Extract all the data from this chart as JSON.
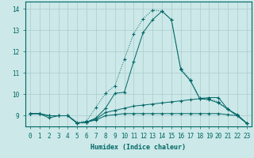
{
  "xlabel": "Humidex (Indice chaleur)",
  "background_color": "#cce8e8",
  "grid_color": "#aacccc",
  "line_color": "#006666",
  "xlim": [
    -0.5,
    23.5
  ],
  "ylim": [
    8.5,
    14.35
  ],
  "yticks": [
    9,
    10,
    11,
    12,
    13,
    14
  ],
  "xticks": [
    0,
    1,
    2,
    3,
    4,
    5,
    6,
    7,
    8,
    9,
    10,
    11,
    12,
    13,
    14,
    15,
    16,
    17,
    18,
    19,
    20,
    21,
    22,
    23
  ],
  "series": [
    {
      "x": [
        0,
        1,
        2,
        3,
        4,
        5,
        6,
        7,
        8,
        9,
        10,
        11,
        12,
        13,
        14,
        15,
        16,
        17,
        18,
        19,
        20,
        21,
        22,
        23
      ],
      "y": [
        9.1,
        9.1,
        9.0,
        9.0,
        9.0,
        8.7,
        8.75,
        9.4,
        10.05,
        10.4,
        11.65,
        12.85,
        13.55,
        13.95,
        13.9,
        13.5,
        11.2,
        10.7,
        9.85,
        9.8,
        9.65,
        9.3,
        9.0,
        8.65
      ],
      "linestyle": "dotted"
    },
    {
      "x": [
        0,
        1,
        2,
        3,
        4,
        5,
        6,
        7,
        8,
        9,
        10,
        11,
        12,
        13,
        14,
        15,
        16,
        17,
        18,
        19,
        20,
        21,
        22,
        23
      ],
      "y": [
        9.1,
        9.1,
        8.9,
        9.0,
        9.0,
        8.65,
        8.7,
        8.9,
        9.35,
        10.05,
        10.1,
        11.55,
        12.9,
        13.5,
        13.9,
        13.5,
        11.15,
        10.65,
        9.8,
        9.75,
        9.6,
        9.3,
        9.0,
        8.65
      ],
      "linestyle": "solid"
    },
    {
      "x": [
        0,
        1,
        2,
        3,
        4,
        5,
        6,
        7,
        8,
        9,
        10,
        11,
        12,
        13,
        14,
        15,
        16,
        17,
        18,
        19,
        20,
        21,
        22,
        23
      ],
      "y": [
        9.1,
        9.1,
        9.0,
        9.0,
        9.0,
        8.65,
        8.7,
        8.85,
        9.15,
        9.25,
        9.35,
        9.45,
        9.5,
        9.55,
        9.6,
        9.65,
        9.7,
        9.75,
        9.8,
        9.85,
        9.85,
        9.3,
        9.05,
        8.65
      ],
      "linestyle": "solid"
    },
    {
      "x": [
        0,
        1,
        2,
        3,
        4,
        5,
        6,
        7,
        8,
        9,
        10,
        11,
        12,
        13,
        14,
        15,
        16,
        17,
        18,
        19,
        20,
        21,
        22,
        23
      ],
      "y": [
        9.1,
        9.1,
        9.0,
        9.0,
        9.0,
        8.65,
        8.7,
        8.8,
        9.0,
        9.05,
        9.1,
        9.1,
        9.1,
        9.1,
        9.1,
        9.1,
        9.1,
        9.1,
        9.1,
        9.1,
        9.1,
        9.05,
        9.0,
        8.65
      ],
      "linestyle": "solid"
    }
  ]
}
